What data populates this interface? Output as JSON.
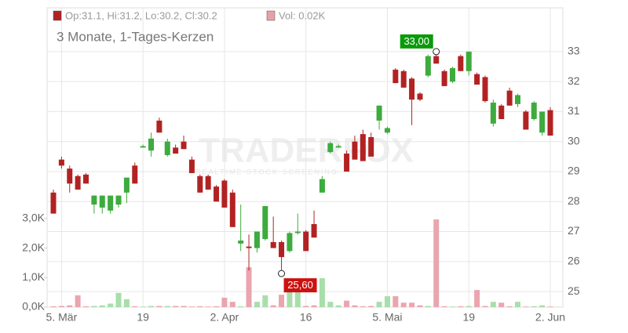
{
  "chart_data": {
    "type": "candlestick",
    "subtitle": "3 Monate, 1-Tages-Kerzen",
    "legend": [
      "Op:31.1, Hi:31.2, Lo:30.2, Cl:30.2",
      "Vol: 0.02K"
    ],
    "legend_colors": [
      "#b22222",
      "#e8a0a8"
    ],
    "watermark": "TRADERFOX",
    "watermark_sub": "REALTIME STOCK SCREENING",
    "categories": [
      null,
      "5. Mär",
      null,
      null,
      null,
      null,
      null,
      null,
      null,
      null,
      null,
      "19",
      null,
      null,
      null,
      null,
      null,
      null,
      null,
      null,
      null,
      "2. Apr",
      null,
      null,
      null,
      null,
      null,
      null,
      null,
      null,
      null,
      "16",
      null,
      null,
      null,
      null,
      null,
      null,
      null,
      null,
      null,
      "5. Mai",
      null,
      null,
      null,
      null,
      null,
      null,
      null,
      null,
      null,
      "19",
      null,
      null,
      null,
      null,
      null,
      null,
      null,
      null,
      null,
      "2. Jun"
    ],
    "open": [
      28.3,
      29.4,
      29.1,
      28.85,
      28.9,
      27.9,
      27.8,
      27.7,
      27.9,
      28.3,
      29.2,
      29.8,
      29.7,
      30.7,
      29.55,
      29.8,
      30.0,
      29.4,
      28.85,
      28.85,
      28.5,
      28.7,
      28.3,
      26.6,
      26.5,
      26.45,
      26.75,
      26.65,
      26.65,
      26.35,
      26.95,
      27.0,
      27.25,
      28.3,
      29.65,
      29.8,
      29.6,
      30.0,
      30.25,
      30.15,
      30.7,
      30.3,
      32.4,
      32.35,
      32.1,
      31.6,
      32.2,
      32.85,
      32.35,
      32.0,
      32.85,
      32.35,
      32.25,
      32.15,
      30.6,
      31.2,
      31.7,
      31.25,
      31.0,
      30.75,
      30.3,
      31.05
    ],
    "high": [
      28.4,
      29.5,
      29.2,
      28.9,
      28.95,
      28.2,
      28.2,
      28.2,
      28.2,
      28.8,
      29.3,
      29.9,
      30.3,
      30.8,
      30.1,
      29.9,
      30.2,
      29.5,
      28.9,
      28.9,
      28.55,
      28.75,
      28.4,
      27.9,
      26.9,
      27.0,
      27.85,
      27.5,
      26.7,
      27.0,
      27.6,
      27.05,
      27.7,
      28.85,
      30.0,
      29.9,
      29.7,
      30.2,
      30.4,
      30.3,
      31.2,
      30.5,
      32.45,
      32.4,
      32.15,
      31.65,
      32.9,
      33.0,
      32.4,
      32.5,
      32.9,
      33.0,
      32.3,
      32.2,
      31.4,
      31.25,
      31.8,
      31.6,
      31.05,
      31.35,
      31.0,
      31.15
    ],
    "low": [
      27.6,
      29.1,
      28.3,
      28.4,
      28.6,
      27.6,
      27.6,
      27.6,
      27.8,
      27.95,
      28.6,
      29.8,
      29.5,
      30.3,
      29.5,
      29.6,
      29.75,
      28.95,
      28.3,
      28.4,
      28.0,
      27.8,
      27.15,
      26.35,
      25.7,
      26.3,
      26.7,
      26.45,
      25.6,
      26.3,
      26.9,
      26.35,
      26.8,
      28.3,
      29.6,
      29.8,
      29.0,
      29.4,
      29.35,
      29.5,
      30.4,
      30.25,
      31.95,
      31.8,
      30.55,
      31.35,
      32.15,
      32.6,
      31.85,
      31.95,
      32.35,
      32.2,
      31.9,
      31.3,
      30.5,
      30.75,
      31.2,
      31.15,
      30.4,
      30.7,
      30.2,
      30.2
    ],
    "close": [
      27.6,
      29.2,
      28.6,
      28.4,
      28.6,
      28.2,
      28.2,
      28.2,
      28.2,
      28.8,
      28.6,
      29.85,
      30.1,
      30.3,
      30.0,
      29.6,
      29.75,
      28.95,
      28.3,
      28.4,
      28.0,
      27.8,
      27.15,
      26.7,
      26.45,
      27.0,
      27.85,
      26.45,
      26.15,
      26.95,
      27.0,
      26.35,
      26.8,
      28.75,
      29.95,
      29.85,
      29.0,
      29.4,
      29.35,
      29.5,
      31.2,
      30.45,
      31.95,
      31.8,
      31.4,
      31.4,
      32.85,
      32.6,
      31.85,
      32.45,
      32.35,
      33.0,
      31.9,
      31.35,
      31.3,
      30.75,
      31.2,
      31.55,
      30.4,
      31.3,
      31.0,
      30.2
    ],
    "volume": [
      30,
      40,
      60,
      400,
      30,
      40,
      60,
      120,
      480,
      270,
      30,
      20,
      40,
      40,
      40,
      40,
      40,
      20,
      30,
      20,
      30,
      320,
      180,
      30,
      1350,
      180,
      400,
      60,
      420,
      560,
      560,
      40,
      60,
      980,
      180,
      60,
      220,
      60,
      30,
      40,
      180,
      370,
      370,
      150,
      150,
      60,
      40,
      2970,
      30,
      20,
      30,
      40,
      580,
      40,
      180,
      150,
      30,
      180,
      20,
      30,
      60,
      20
    ],
    "up_color": "#3dab3d",
    "down_color": "#b22222",
    "volume_up_color": "#a8deaa",
    "volume_down_color": "#eaa5ae",
    "annotations": [
      {
        "value": 33.0,
        "label": "33,00",
        "color": "#0a9a0a",
        "at": "high"
      },
      {
        "value": 25.6,
        "label": "25,60",
        "color": "#cc1111",
        "at": "low"
      }
    ],
    "ylim": [
      24.48,
      34.46
    ],
    "yticks": [
      25,
      26,
      27,
      28,
      29,
      30,
      31,
      32,
      33
    ],
    "y2lim": [
      0,
      10130
    ],
    "y2ticks": [
      {
        "value": 0,
        "label": "0,0K"
      },
      {
        "value": 1000,
        "label": "1,0K"
      },
      {
        "value": 2000,
        "label": "2,0K"
      },
      {
        "value": 3000,
        "label": "3,0K"
      }
    ],
    "grid": true
  }
}
